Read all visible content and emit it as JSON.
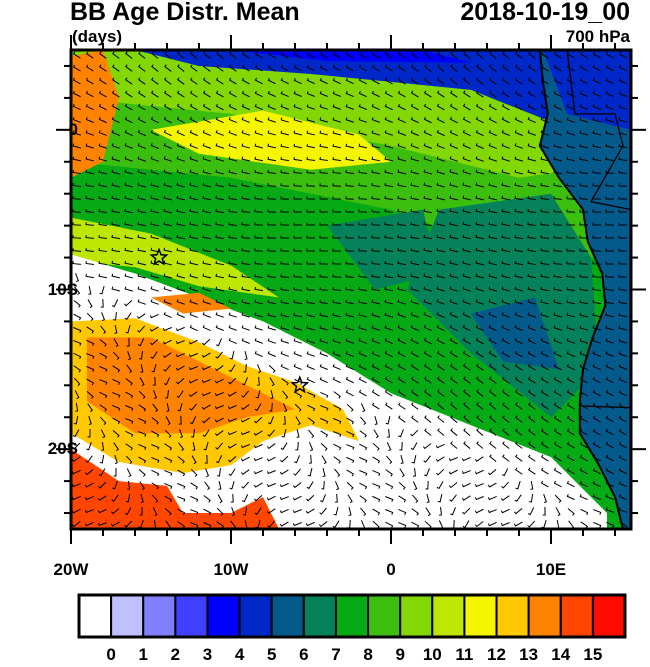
{
  "title": "BB Age Distr. Mean",
  "units": "(days)",
  "date": "2018-10-19_00",
  "level": "700 hPa",
  "axes": {
    "x_labels": [
      "20W",
      "10W",
      "0",
      "10E"
    ],
    "x_values": [
      -20,
      -10,
      0,
      10
    ],
    "y_labels": [
      "0",
      "10S",
      "20S"
    ],
    "y_values": [
      0,
      -10,
      -20
    ],
    "lon_range": [
      -20,
      15
    ],
    "lat_range": [
      -25,
      5
    ]
  },
  "colorbar": {
    "labels": [
      "0",
      "1",
      "2",
      "3",
      "4",
      "5",
      "6",
      "7",
      "8",
      "9",
      "10",
      "11",
      "12",
      "13",
      "14",
      "15"
    ],
    "colors": [
      "#ffffff",
      "#c0c0ff",
      "#8080ff",
      "#4040ff",
      "#0000ff",
      "#0028c8",
      "#055a8c",
      "#05825a",
      "#05aa14",
      "#3cbe0f",
      "#82d705",
      "#bee605",
      "#f5f500",
      "#ffc800",
      "#ff8200",
      "#ff4600",
      "#ff0a00"
    ]
  },
  "markers": [
    {
      "type": "star",
      "lon": -14.5,
      "lat": -8
    },
    {
      "type": "star",
      "lon": -5.7,
      "lat": -16
    }
  ]
}
